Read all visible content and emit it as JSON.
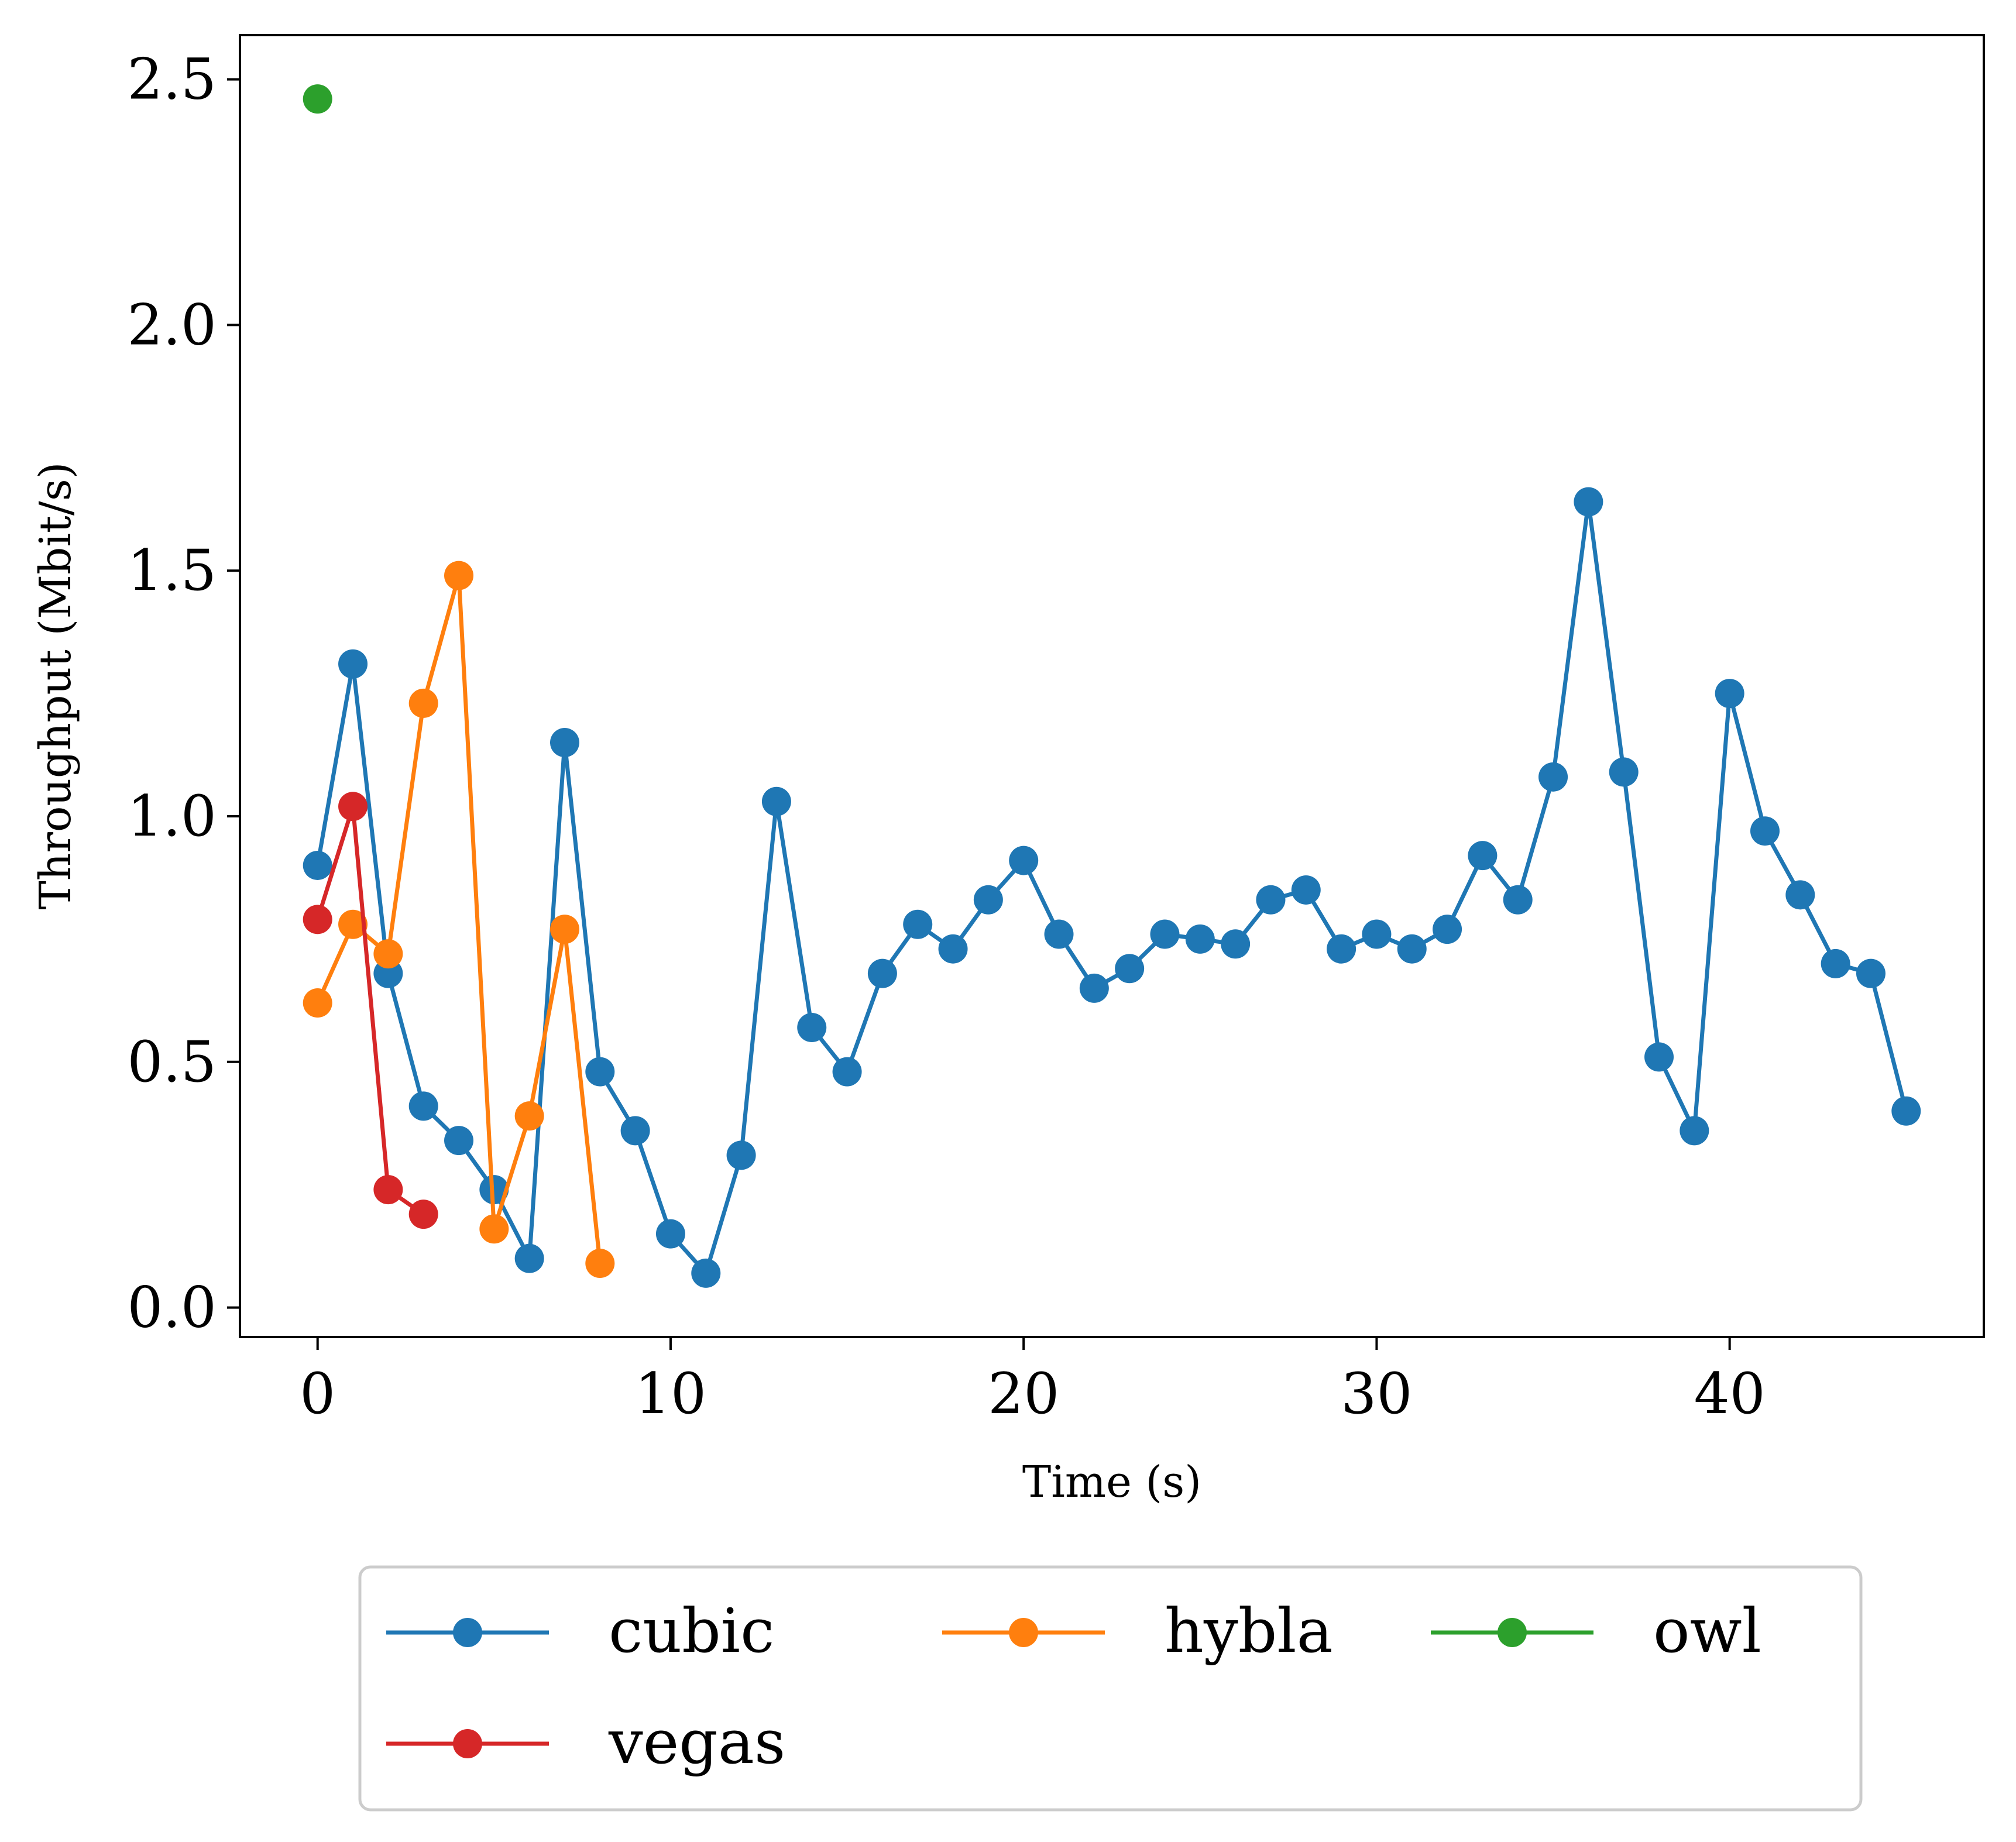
{
  "chart_data": {
    "type": "line",
    "xlabel": "Time (s)",
    "ylabel": "Throughput (Mbit/s)",
    "xlim": [
      -2.2,
      47.2
    ],
    "ylim": [
      -0.06,
      2.59
    ],
    "xticks": [
      0,
      10,
      20,
      30,
      40
    ],
    "xtick_labels": [
      "0",
      "10",
      "20",
      "30",
      "40"
    ],
    "yticks": [
      0.0,
      0.5,
      1.0,
      1.5,
      2.0,
      2.5
    ],
    "ytick_labels": [
      "0.0",
      "0.5",
      "1.0",
      "1.5",
      "2.0",
      "2.5"
    ],
    "grid": false,
    "legend_position": "bottom-outside",
    "series": [
      {
        "name": "cubic",
        "color": "#1f77b4",
        "x": [
          0,
          1,
          2,
          3,
          4,
          5,
          6,
          7,
          8,
          9,
          10,
          11,
          12,
          13,
          14,
          15,
          16,
          17,
          18,
          19,
          20,
          21,
          22,
          23,
          24,
          25,
          26,
          27,
          28,
          29,
          30,
          31,
          32,
          33,
          34,
          35,
          36,
          37,
          38,
          39,
          40,
          41,
          42,
          43,
          44,
          45
        ],
        "y": [
          0.9,
          1.31,
          0.68,
          0.41,
          0.34,
          0.24,
          0.1,
          1.15,
          0.48,
          0.36,
          0.15,
          0.07,
          0.31,
          1.03,
          0.57,
          0.48,
          0.68,
          0.78,
          0.73,
          0.83,
          0.91,
          0.76,
          0.65,
          0.69,
          0.76,
          0.75,
          0.74,
          0.83,
          0.85,
          0.73,
          0.76,
          0.73,
          0.77,
          0.92,
          0.83,
          1.08,
          1.64,
          1.09,
          0.51,
          0.36,
          1.25,
          0.97,
          0.84,
          0.7,
          0.68,
          0.4
        ]
      },
      {
        "name": "hybla",
        "color": "#ff7f0e",
        "x": [
          0,
          1,
          2,
          3,
          4,
          5,
          6,
          7,
          8
        ],
        "y": [
          0.62,
          0.78,
          0.72,
          1.23,
          1.49,
          0.16,
          0.39,
          0.77,
          0.09
        ]
      },
      {
        "name": "owl",
        "color": "#2ca02c",
        "x": [
          0
        ],
        "y": [
          2.46
        ]
      },
      {
        "name": "vegas",
        "color": "#d62728",
        "x": [
          0,
          1,
          2,
          3
        ],
        "y": [
          0.79,
          1.02,
          0.24,
          0.19
        ]
      }
    ]
  }
}
